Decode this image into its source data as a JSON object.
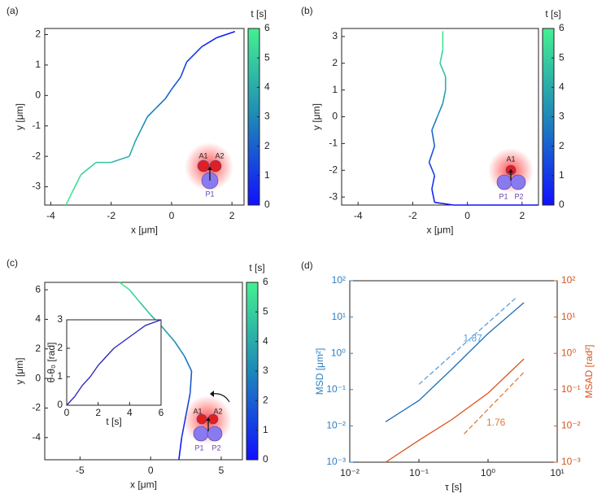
{
  "chart_data": [
    {
      "type": "trajectory",
      "panel_label": "(a)",
      "xlabel": "x [μm]",
      "ylabel": "y [μm]",
      "xlim": [
        -4.2,
        2.4
      ],
      "ylim": [
        -3.6,
        2.2
      ],
      "xticks": [
        -4,
        -2,
        0,
        2
      ],
      "yticks": [
        -3,
        -2,
        -1,
        0,
        1,
        2
      ],
      "x": [
        2.1,
        1.5,
        1.0,
        0.5,
        0.3,
        0.0,
        -0.2,
        -0.5,
        -0.8,
        -1.0,
        -1.2,
        -1.4,
        -2.0,
        -2.5,
        -3.0,
        -3.3,
        -3.5
      ],
      "y": [
        2.1,
        1.9,
        1.6,
        1.1,
        0.6,
        0.2,
        -0.1,
        -0.4,
        -0.7,
        -1.1,
        -1.5,
        -2.0,
        -2.2,
        -2.2,
        -2.6,
        -3.2,
        -3.6
      ],
      "t": [
        0,
        0.375,
        0.75,
        1.125,
        1.5,
        1.875,
        2.25,
        2.625,
        3,
        3.375,
        3.75,
        4.125,
        4.5,
        4.875,
        5.25,
        5.625,
        6
      ],
      "colormap": [
        "#1010ff",
        "#1e88b8",
        "#44f090"
      ],
      "colorbar": {
        "label": "t [s]",
        "lim": [
          0,
          6
        ],
        "ticks": [
          0,
          1,
          2,
          3,
          4,
          5,
          6
        ]
      },
      "diagram_labels": [
        "A1",
        "A2",
        "P1"
      ]
    },
    {
      "type": "trajectory",
      "panel_label": "(b)",
      "xlabel": "x [μm]",
      "ylabel": "y [μm]",
      "xlim": [
        -4.6,
        2.6
      ],
      "ylim": [
        -3.3,
        3.3
      ],
      "xticks": [
        -4,
        -2,
        0,
        2
      ],
      "yticks": [
        -3,
        -2,
        -1,
        0,
        1,
        2,
        3
      ],
      "x": [
        2.6,
        0.5,
        -0.5,
        -1.2,
        -1.3,
        -1.2,
        -1.4,
        -1.2,
        -1.3,
        -1.1,
        -0.9,
        -0.8,
        -0.8,
        -1.0,
        -0.9,
        -0.9
      ],
      "y": [
        -3.3,
        -3.3,
        -3.3,
        -3.2,
        -2.7,
        -2.2,
        -1.7,
        -1.1,
        -0.5,
        0,
        0.5,
        1.0,
        1.5,
        2.0,
        2.5,
        3.2
      ],
      "t": [
        0,
        0.05,
        0.1,
        0.3,
        0.7,
        1.1,
        1.5,
        1.9,
        2.4,
        2.9,
        3.4,
        3.9,
        4.4,
        4.9,
        5.4,
        6
      ],
      "colormap": [
        "#1010ff",
        "#1e88b8",
        "#44f090"
      ],
      "colorbar": {
        "label": "t [s]",
        "lim": [
          0,
          6
        ],
        "ticks": [
          0,
          1,
          2,
          3,
          4,
          5,
          6
        ]
      },
      "diagram_labels": [
        "A1",
        "P1",
        "P2"
      ]
    },
    {
      "type": "trajectory",
      "panel_label": "(c)",
      "xlabel": "x [μm]",
      "ylabel": "y [μm]",
      "xlim": [
        -7.5,
        6.5
      ],
      "ylim": [
        -5.5,
        6.5
      ],
      "xticks": [
        -5,
        0,
        5
      ],
      "yticks": [
        -4,
        -2,
        0,
        2,
        4,
        6
      ],
      "x": [
        2.0,
        2.2,
        2.5,
        2.8,
        2.9,
        2.4,
        1.7,
        0.8,
        0.0,
        -0.8,
        -1.5,
        -2.2
      ],
      "y": [
        -5.5,
        -4.0,
        -2.5,
        -1.0,
        0.5,
        1.5,
        2.5,
        3.5,
        4.3,
        5.2,
        6.0,
        6.5
      ],
      "t": [
        0,
        0.55,
        1.1,
        1.6,
        2.2,
        2.7,
        3.3,
        3.8,
        4.4,
        4.9,
        5.5,
        6
      ],
      "colormap": [
        "#1010ff",
        "#1e88b8",
        "#44f090"
      ],
      "colorbar": {
        "label": "t [s]",
        "lim": [
          0,
          6
        ],
        "ticks": [
          0,
          1,
          2,
          3,
          4,
          5,
          6
        ]
      },
      "diagram_labels": [
        "A1",
        "A2",
        "P1",
        "P2"
      ],
      "inset": {
        "xlabel": "t [s]",
        "ylabel": "θ-θ₀ [rad]",
        "xlim": [
          0,
          6
        ],
        "ylim": [
          0,
          3
        ],
        "xticks": [
          0,
          2,
          4,
          6
        ],
        "yticks": [
          0,
          1,
          2,
          3
        ],
        "color": "#2222bb",
        "x": [
          0,
          0.5,
          1,
          1.5,
          2,
          2.5,
          3,
          3.5,
          4,
          4.5,
          5,
          5.5,
          6
        ],
        "values": [
          0,
          0.3,
          0.7,
          1.0,
          1.4,
          1.7,
          2.0,
          2.2,
          2.4,
          2.6,
          2.8,
          2.9,
          3.0
        ]
      }
    },
    {
      "type": "line",
      "panel_label": "(d)",
      "log": true,
      "xlabel": "τ [s]",
      "ylabel": "MSD [μm²]",
      "y2label": "MSAD [rad²]",
      "ycolor": "#2a7fc4",
      "y2color": "#d9541e",
      "xlim": [
        0.01,
        10
      ],
      "ylim": [
        0.001,
        100
      ],
      "y2lim": [
        0.001,
        100
      ],
      "xticks": [
        {
          "value": 0.01,
          "label": "10⁻²"
        },
        {
          "value": 0.1,
          "label": "10⁻¹"
        },
        {
          "value": 1,
          "label": "10⁰"
        },
        {
          "value": 10,
          "label": "10¹"
        }
      ],
      "yticks": [
        {
          "value": 0.001,
          "label": "10⁻³"
        },
        {
          "value": 0.01,
          "label": "10⁻²"
        },
        {
          "value": 0.1,
          "label": "10⁻¹"
        },
        {
          "value": 1,
          "label": "10⁰"
        },
        {
          "value": 10,
          "label": "10¹"
        },
        {
          "value": 100,
          "label": "10²"
        }
      ],
      "y2ticks": [
        {
          "value": 0.001,
          "label": "10⁻³"
        },
        {
          "value": 0.01,
          "label": "10⁻²"
        },
        {
          "value": 0.1,
          "label": "10⁻¹"
        },
        {
          "value": 1,
          "label": "10⁰"
        },
        {
          "value": 10,
          "label": "10¹"
        },
        {
          "value": 100,
          "label": "10²"
        }
      ],
      "series": [
        {
          "color": "#1f6fb5",
          "x": [
            0.033,
            0.1,
            0.3,
            1,
            3.3
          ],
          "values": [
            0.013,
            0.05,
            0.37,
            3.5,
            25
          ]
        },
        {
          "color": "#5a9fd8",
          "dash": true,
          "x": [
            0.1,
            2.5
          ],
          "values": [
            0.14,
            33
          ]
        },
        {
          "color": "#d9541e",
          "axis": "y2",
          "x": [
            0.033,
            0.1,
            0.3,
            1,
            3.3
          ],
          "values": [
            0.001,
            0.004,
            0.015,
            0.08,
            0.7
          ]
        },
        {
          "color": "#e07a3a",
          "dash": true,
          "axis": "y2",
          "x": [
            0.45,
            3.3
          ],
          "values": [
            0.006,
            0.3
          ]
        }
      ],
      "annotations": [
        {
          "text": "1.87",
          "x": 0.6,
          "y": 2.5,
          "color": "#5a9fd8"
        },
        {
          "text": "1.76",
          "x": 1.3,
          "y": 0.012,
          "axis": "y2",
          "color": "#e07a3a"
        }
      ]
    }
  ]
}
